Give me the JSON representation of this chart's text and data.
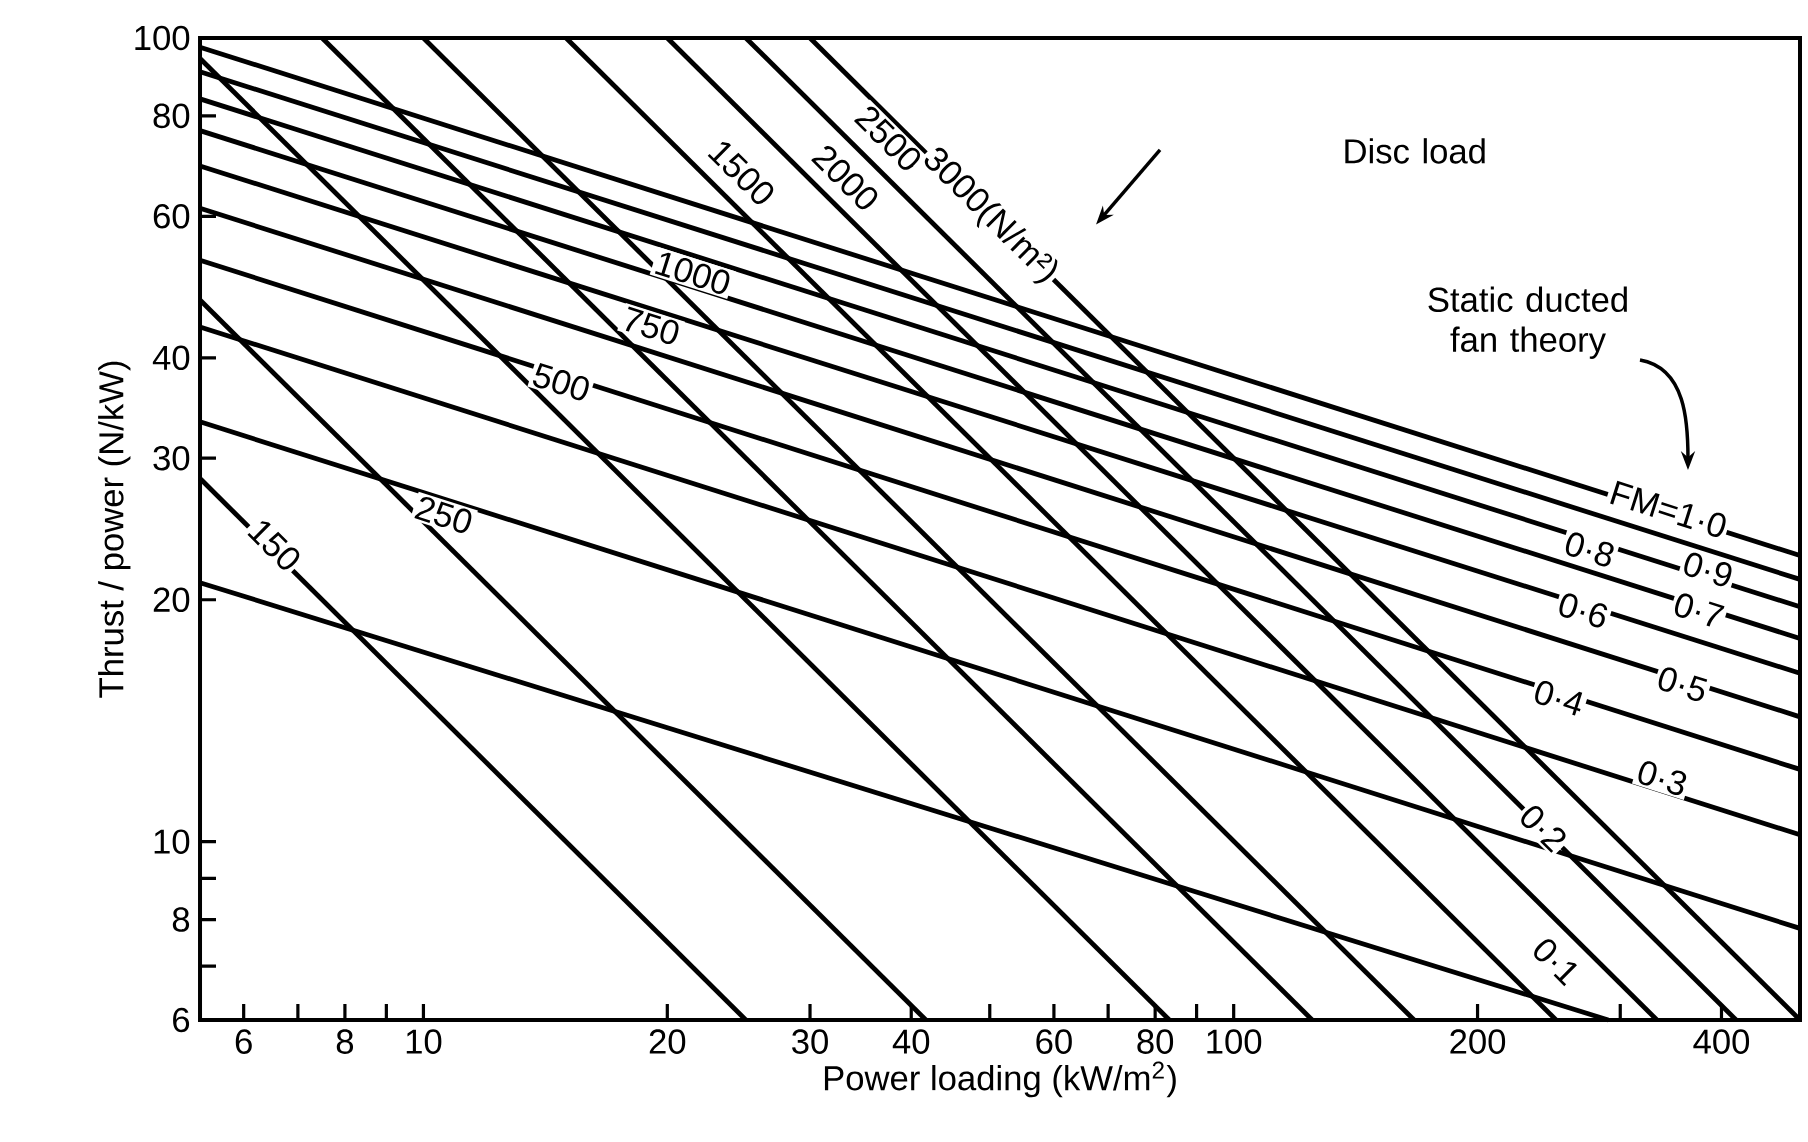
{
  "chart_data": {
    "type": "line",
    "log": "xy",
    "xlabel": "Power loading  (kW/m$^{2}$)",
    "ylabel": "Thrust / power  (N/kW)",
    "xlim": [
      5.3,
      500
    ],
    "ylim": [
      6,
      100
    ],
    "xticks": [
      6,
      {
        "value": 7,
        "label": null
      },
      8,
      {
        "value": 9,
        "label": null
      },
      10,
      20,
      30,
      40,
      {
        "value": 50,
        "label": null
      },
      60,
      {
        "value": 70,
        "label": null
      },
      80,
      {
        "value": 90,
        "label": null
      },
      100,
      200,
      {
        "value": 300,
        "label": null
      },
      400
    ],
    "yticks": [
      6,
      {
        "value": 7,
        "label": null
      },
      8,
      {
        "value": 9,
        "label": null
      },
      10,
      20,
      30,
      40,
      60,
      80,
      100
    ],
    "series": [
      {
        "color": "#000000",
        "x": [
          5.3,
          25
        ],
        "values": [
          28.3,
          6
        ]
      },
      {
        "color": "#000000",
        "x": [
          5.3,
          41.7
        ],
        "values": [
          47.2,
          6
        ]
      },
      {
        "color": "#000000",
        "x": [
          5.3,
          83.3
        ],
        "values": [
          94.3,
          6
        ]
      },
      {
        "color": "#000000",
        "x": [
          7.5,
          125
        ],
        "values": [
          100,
          6
        ]
      },
      {
        "color": "#000000",
        "x": [
          10,
          167
        ],
        "values": [
          100,
          6
        ]
      },
      {
        "color": "#000000",
        "x": [
          15,
          250
        ],
        "values": [
          100,
          6
        ]
      },
      {
        "color": "#000000",
        "x": [
          20,
          333
        ],
        "values": [
          100,
          6
        ]
      },
      {
        "color": "#000000",
        "x": [
          25,
          417
        ],
        "values": [
          100,
          6
        ]
      },
      {
        "color": "#000000",
        "x": [
          30,
          500
        ],
        "values": [
          100,
          6
        ]
      },
      {
        "color": "#000000",
        "x": [
          5.3,
          500
        ],
        "values": [
          97.4,
          22.7
        ]
      },
      {
        "color": "#000000",
        "x": [
          5.3,
          500
        ],
        "values": [
          90.8,
          21.2
        ]
      },
      {
        "color": "#000000",
        "x": [
          5.3,
          500
        ],
        "values": [
          84,
          19.6
        ]
      },
      {
        "color": "#000000",
        "x": [
          5.3,
          500
        ],
        "values": [
          76.7,
          17.9
        ]
      },
      {
        "color": "#000000",
        "x": [
          5.3,
          500
        ],
        "values": [
          69.3,
          16.2
        ]
      },
      {
        "color": "#000000",
        "x": [
          5.3,
          500
        ],
        "values": [
          61.4,
          14.3
        ]
      },
      {
        "color": "#000000",
        "x": [
          5.3,
          500
        ],
        "values": [
          52.9,
          12.3
        ]
      },
      {
        "color": "#000000",
        "x": [
          5.3,
          500
        ],
        "values": [
          43.7,
          10.2
        ]
      },
      {
        "color": "#000000",
        "x": [
          5.3,
          500
        ],
        "values": [
          33.3,
          7.8
        ]
      },
      {
        "color": "#000000",
        "x": [
          5.3,
          290
        ],
        "values": [
          21,
          6
        ]
      }
    ],
    "annotations": [
      {
        "text": "150",
        "x": 6.55,
        "y": 23.4
      },
      {
        "text": "250",
        "x": 10.6,
        "y": 25.5
      },
      {
        "text": "500",
        "x": 14.8,
        "y": 37.3
      },
      {
        "text": "750",
        "x": 19.1,
        "y": 43.8
      },
      {
        "text": "1000",
        "x": 21.5,
        "y": 51
      },
      {
        "text": "1500",
        "x": 24.7,
        "y": 68
      },
      {
        "text": "2000",
        "x": 33.2,
        "y": 67
      },
      {
        "text": "2500",
        "x": 37.5,
        "y": 75
      },
      {
        "text": "3000(N/m²)",
        "x": 50,
        "y": 60
      },
      {
        "text": "FM=1·0",
        "x": 344,
        "y": 25.9
      },
      {
        "text": "0·9",
        "x": 385,
        "y": 21.8
      },
      {
        "text": "0·8",
        "x": 275,
        "y": 23.1
      },
      {
        "text": "0·7",
        "x": 375,
        "y": 19.4
      },
      {
        "text": "0·6",
        "x": 270,
        "y": 19.4
      },
      {
        "text": "0·5",
        "x": 358,
        "y": 15.7
      },
      {
        "text": "0·4",
        "x": 252,
        "y": 15.1
      },
      {
        "text": "0·3",
        "x": 338,
        "y": 12.0
      },
      {
        "text": "0·2",
        "x": 241,
        "y": 10.4
      },
      {
        "text": "0·1",
        "x": 250,
        "y": 7.1
      },
      "Disc load",
      "Static ducted fan theory"
    ]
  }
}
